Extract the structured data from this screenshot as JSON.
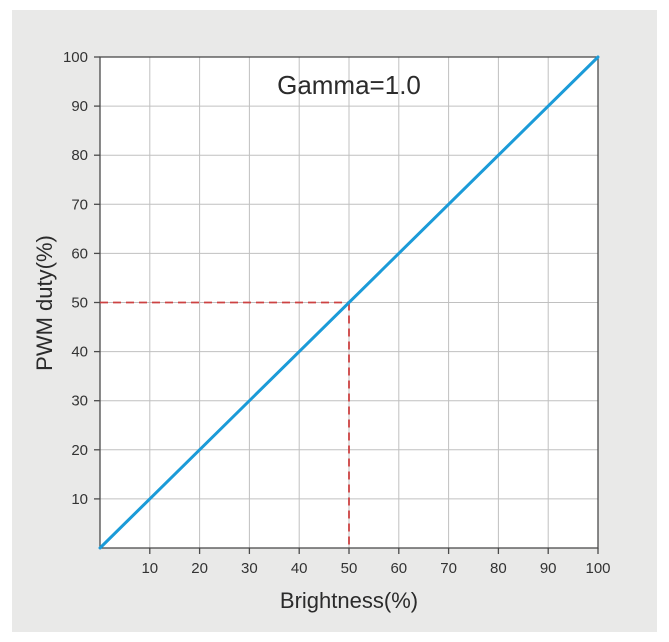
{
  "page": {
    "background": "#ffffff",
    "panel_background": "#e9e9e8"
  },
  "chart_data": {
    "type": "line",
    "title": "Gamma=1.0",
    "xlabel": "Brightness(%)",
    "ylabel": "PWM duty(%)",
    "xlim": [
      0,
      100
    ],
    "ylim": [
      0,
      100
    ],
    "xticks": [
      10,
      20,
      30,
      40,
      50,
      60,
      70,
      80,
      90,
      100
    ],
    "yticks": [
      10,
      20,
      30,
      40,
      50,
      60,
      70,
      80,
      90,
      100
    ],
    "grid": true,
    "legend_position": "none",
    "plot_background": "#ffffff",
    "grid_color": "#c0c0c0",
    "axis_color": "#4a4a4a",
    "series": [
      {
        "name": "Gamma=1.0",
        "color": "#1b9bd8",
        "width": 3,
        "x": [
          0,
          100
        ],
        "y": [
          0,
          100
        ]
      }
    ],
    "annotations": [
      {
        "type": "crosshair-dashed",
        "x": 50,
        "y": 50,
        "color": "#cc4242"
      }
    ]
  }
}
